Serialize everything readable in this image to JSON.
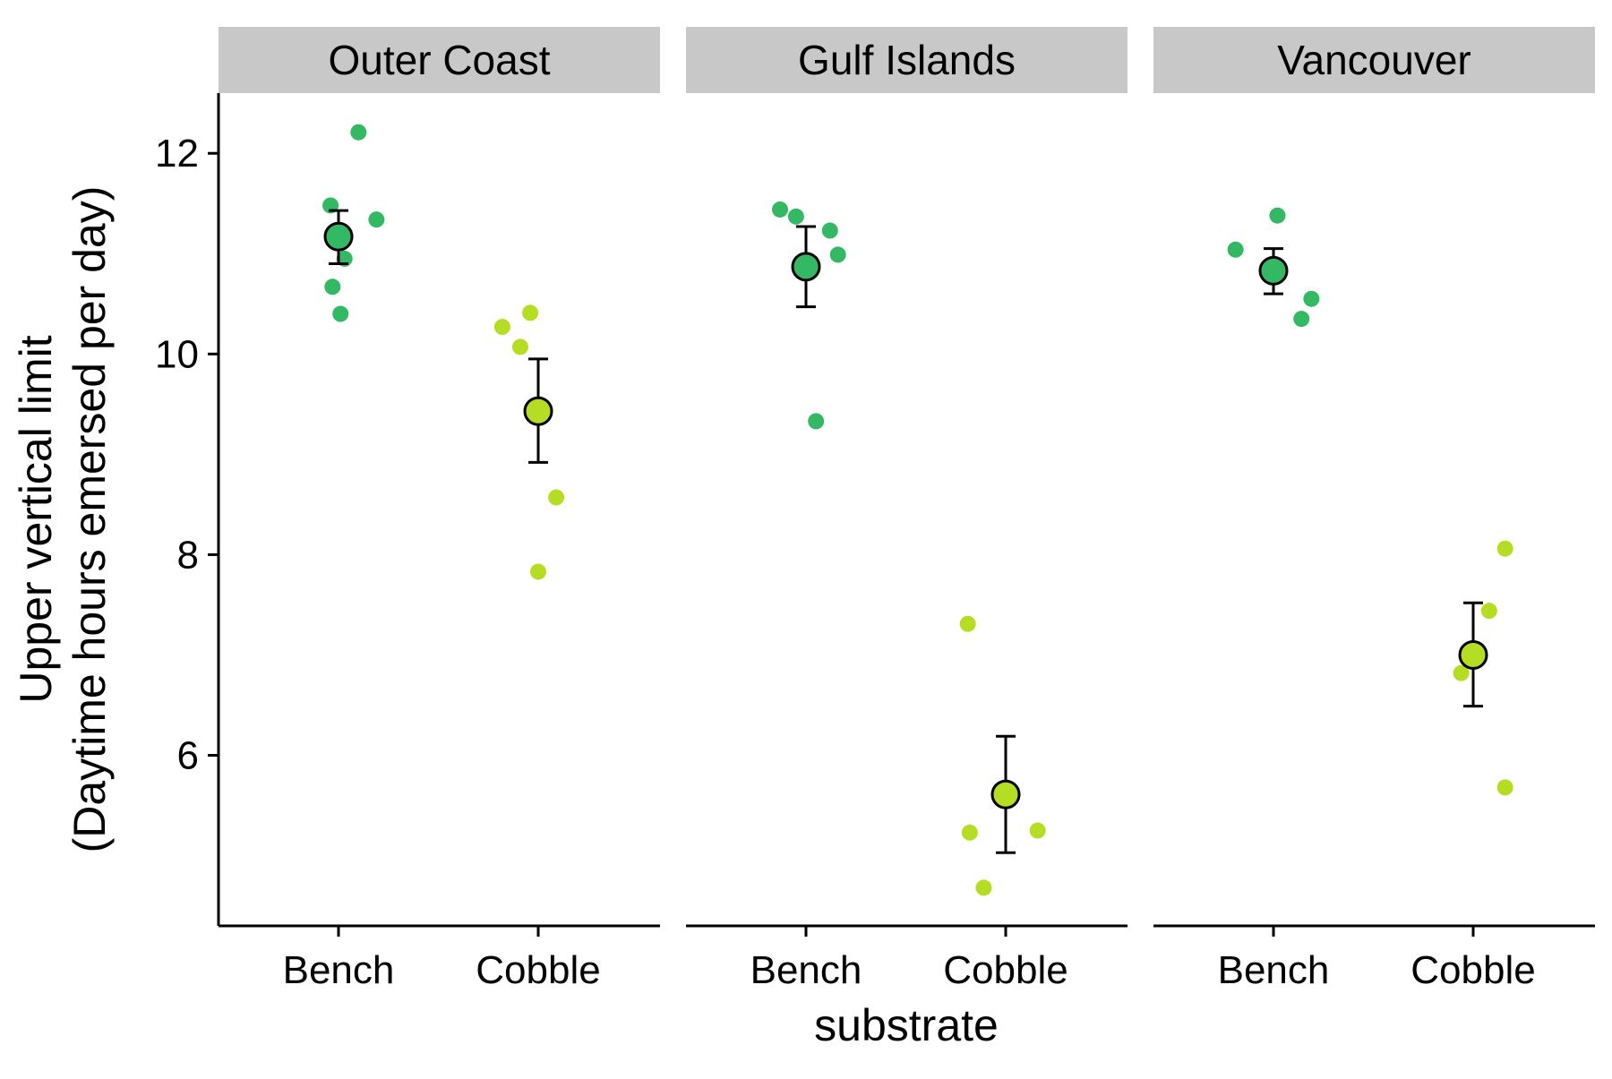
{
  "chart_data": {
    "type": "scatter",
    "ylabel_line1": "Upper vertical limit",
    "ylabel_line2": "(Daytime hours emersed per day)",
    "xlabel": "substrate",
    "ylim": [
      4.3,
      12.6
    ],
    "yticks": [
      "6",
      "8",
      "10",
      "12"
    ],
    "ytick_values": [
      6,
      8,
      10,
      12
    ],
    "categories": [
      "Bench",
      "Cobble"
    ],
    "colors": {
      "Bench": "#33b864",
      "Cobble": "#b4dd23",
      "strip_bg": "#c8c8c8",
      "axis": "#000000"
    },
    "panels": [
      {
        "name": "Outer Coast",
        "groups": [
          {
            "substrate": "Bench",
            "mean": 11.17,
            "lower": 10.9,
            "upper": 11.43,
            "points": [
              {
                "x": -0.04,
                "y": 11.48
              },
              {
                "x": 0.1,
                "y": 12.21
              },
              {
                "x": 0.19,
                "y": 11.34
              },
              {
                "x": 0.03,
                "y": 10.95
              },
              {
                "x": -0.03,
                "y": 10.67
              },
              {
                "x": 0.01,
                "y": 10.4
              }
            ]
          },
          {
            "substrate": "Cobble",
            "mean": 9.43,
            "lower": 8.92,
            "upper": 9.95,
            "points": [
              {
                "x": -0.18,
                "y": 10.27
              },
              {
                "x": -0.09,
                "y": 10.07
              },
              {
                "x": -0.04,
                "y": 10.41
              },
              {
                "x": 0.09,
                "y": 8.57
              },
              {
                "x": 0.0,
                "y": 7.83
              }
            ]
          }
        ]
      },
      {
        "name": "Gulf Islands",
        "groups": [
          {
            "substrate": "Bench",
            "mean": 10.87,
            "lower": 10.47,
            "upper": 11.27,
            "points": [
              {
                "x": -0.13,
                "y": 11.44
              },
              {
                "x": -0.05,
                "y": 11.37
              },
              {
                "x": 0.12,
                "y": 11.23
              },
              {
                "x": 0.16,
                "y": 10.99
              },
              {
                "x": 0.05,
                "y": 9.33
              }
            ]
          },
          {
            "substrate": "Cobble",
            "mean": 5.61,
            "lower": 5.03,
            "upper": 6.19,
            "points": [
              {
                "x": -0.19,
                "y": 7.31
              },
              {
                "x": -0.18,
                "y": 5.23
              },
              {
                "x": 0.16,
                "y": 5.25
              },
              {
                "x": -0.11,
                "y": 4.68
              }
            ]
          }
        ]
      },
      {
        "name": "Vancouver",
        "groups": [
          {
            "substrate": "Bench",
            "mean": 10.83,
            "lower": 10.6,
            "upper": 11.05,
            "points": [
              {
                "x": -0.19,
                "y": 11.04
              },
              {
                "x": 0.02,
                "y": 11.38
              },
              {
                "x": 0.19,
                "y": 10.55
              },
              {
                "x": 0.14,
                "y": 10.35
              }
            ]
          },
          {
            "substrate": "Cobble",
            "mean": 7.0,
            "lower": 6.49,
            "upper": 7.52,
            "points": [
              {
                "x": 0.16,
                "y": 8.06
              },
              {
                "x": 0.08,
                "y": 7.44
              },
              {
                "x": -0.06,
                "y": 6.82
              },
              {
                "x": 0.16,
                "y": 5.68
              }
            ]
          }
        ]
      }
    ]
  }
}
